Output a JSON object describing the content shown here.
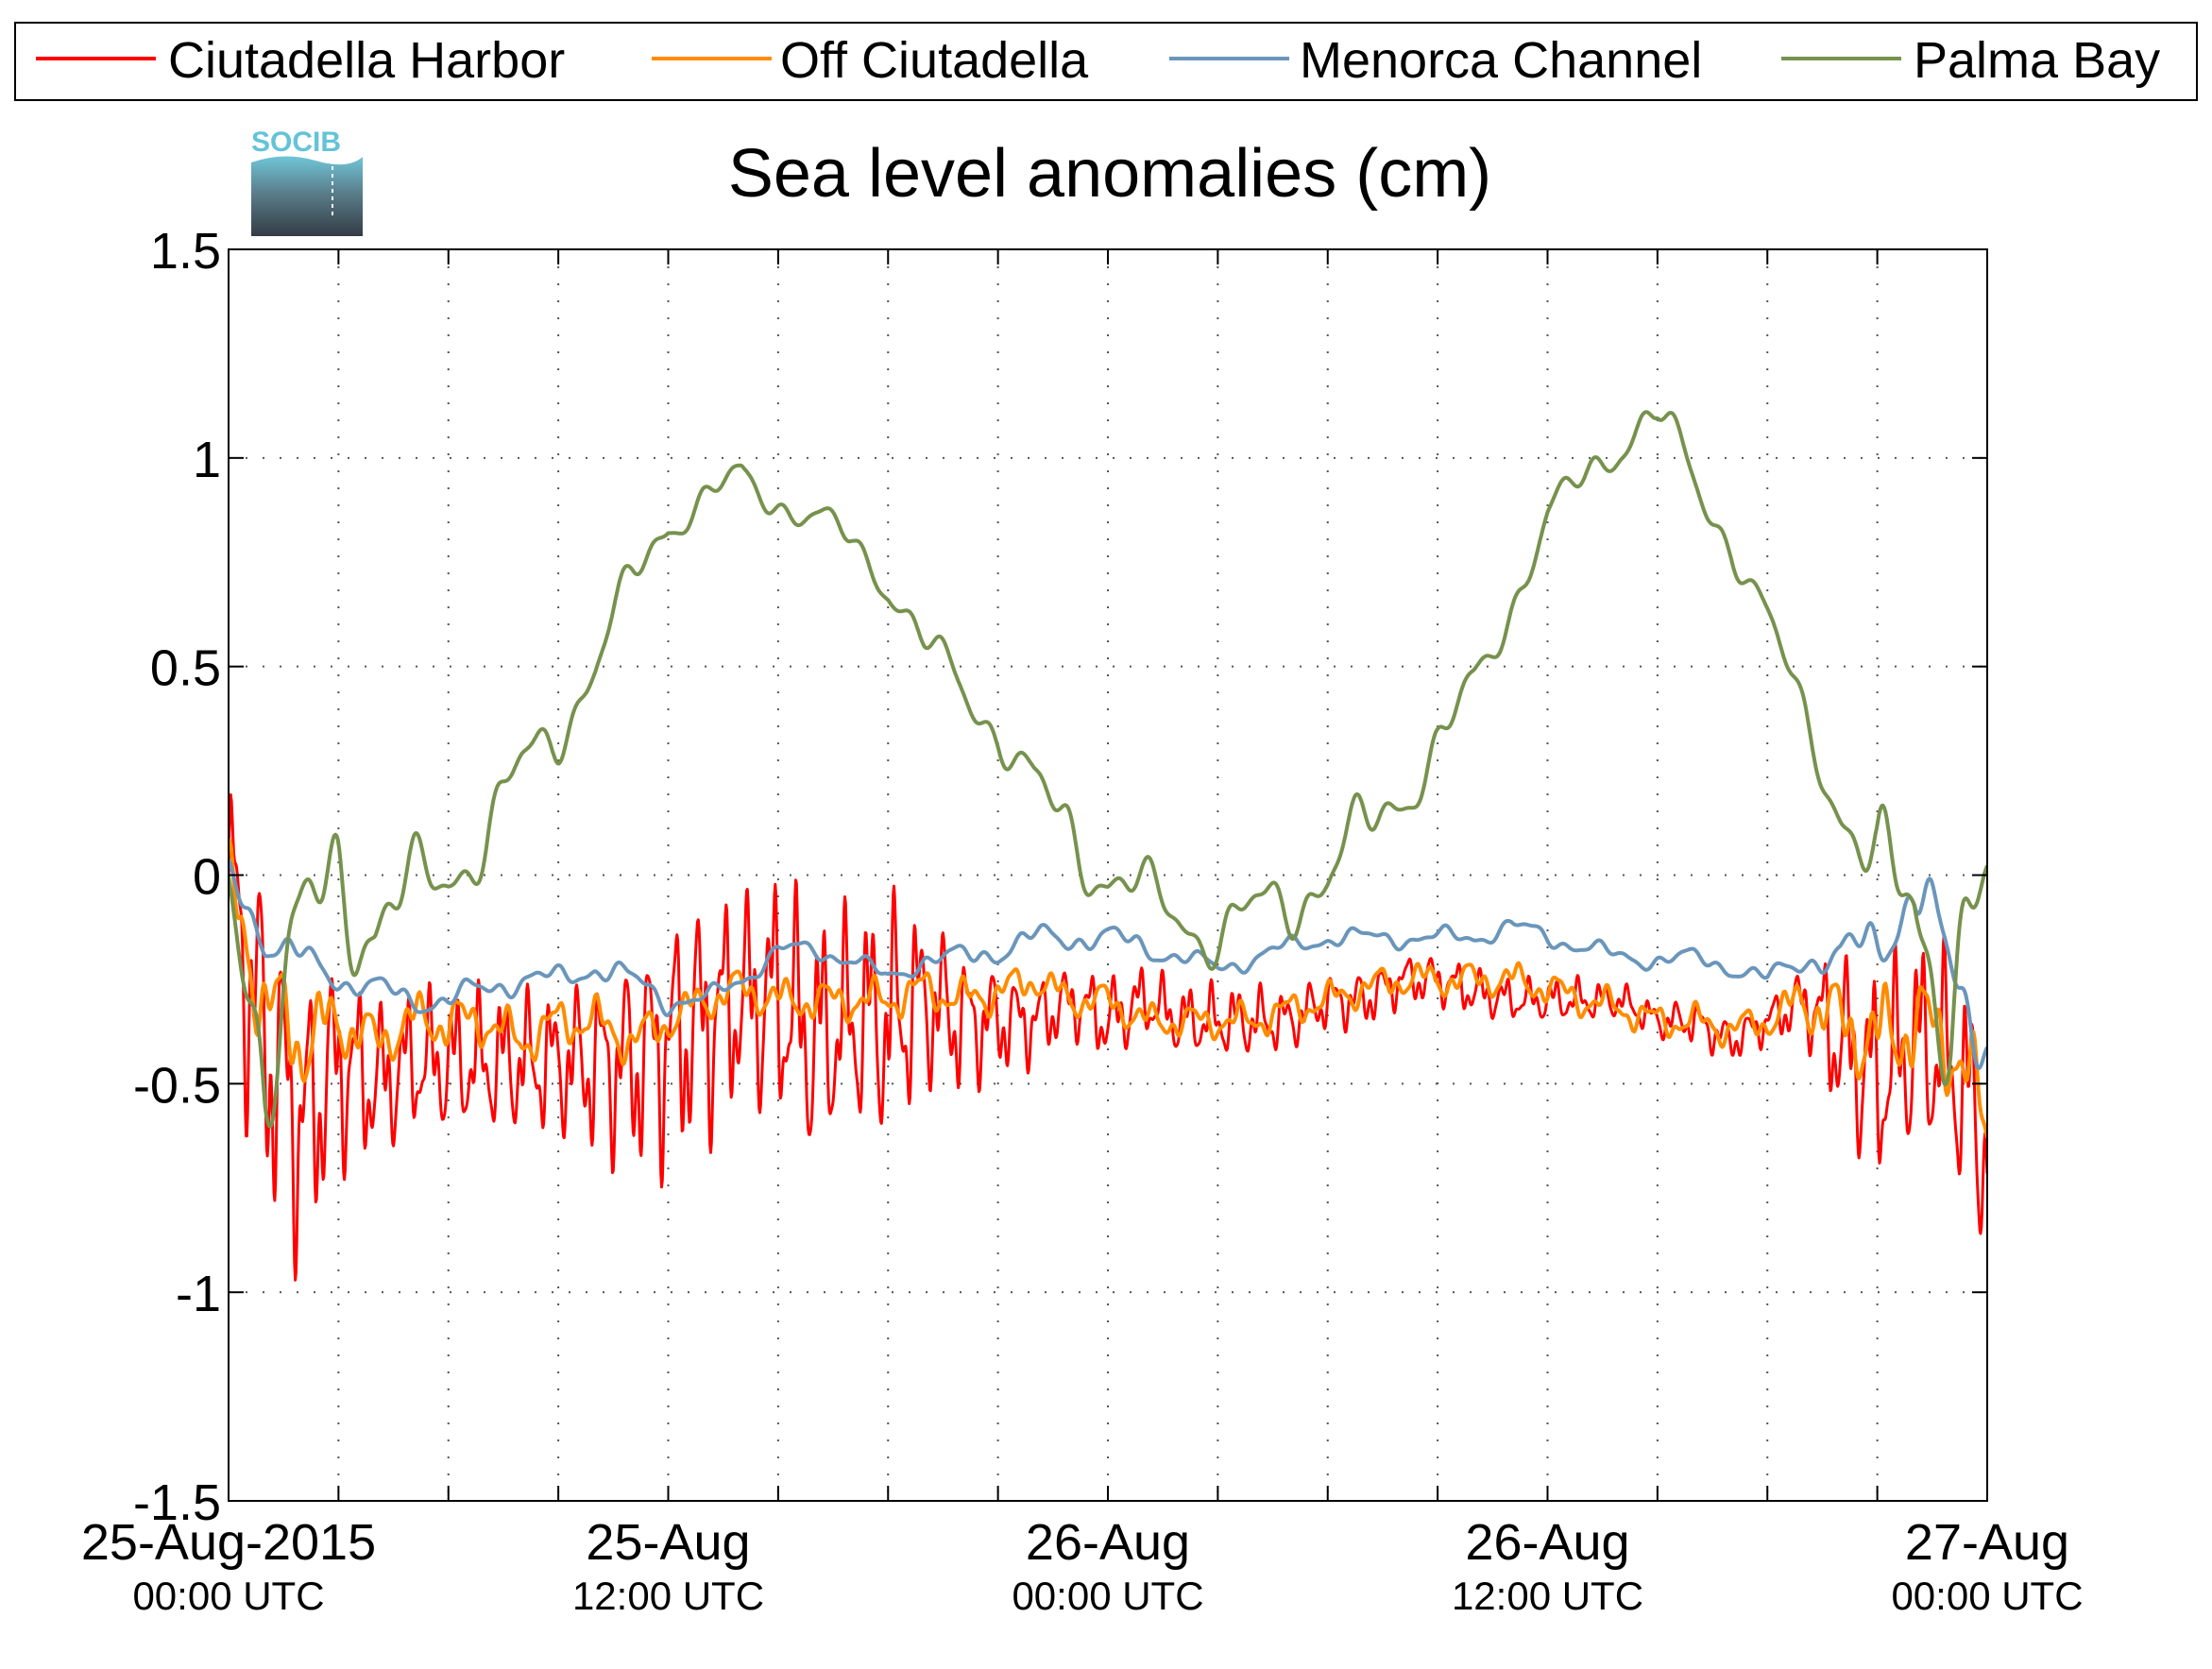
{
  "chart_data": {
    "type": "line",
    "title": "Sea level anomalies (cm)",
    "xlabel": "",
    "ylabel": "",
    "ylim": [
      -1.5,
      1.5
    ],
    "yticks": [
      "1.5",
      "1",
      "0.5",
      "0",
      "-0.5",
      "-1",
      "-1.5"
    ],
    "xlim_hours": [
      0,
      48
    ],
    "x_tick_labels": [
      {
        "hour": 0,
        "date": "25-Aug-2015",
        "time": "00:00 UTC"
      },
      {
        "hour": 12,
        "date": "25-Aug",
        "time": "12:00 UTC"
      },
      {
        "hour": 24,
        "date": "26-Aug",
        "time": "00:00 UTC"
      },
      {
        "hour": 36,
        "date": "26-Aug",
        "time": "12:00 UTC"
      },
      {
        "hour": 48,
        "date": "27-Aug",
        "time": "00:00 UTC"
      }
    ],
    "grid": true,
    "legend_position": "top",
    "logo": "SOCIB",
    "series": [
      {
        "name": "Ciutadella Harbor",
        "color": "#ff0000",
        "points": [
          [
            0,
            -0.05
          ],
          [
            1,
            -0.4
          ],
          [
            2,
            -0.6
          ],
          [
            3,
            -0.45
          ],
          [
            4,
            -0.5
          ],
          [
            5,
            -0.45
          ],
          [
            6,
            -0.45
          ],
          [
            7,
            -0.45
          ],
          [
            8,
            -0.45
          ],
          [
            9,
            -0.45
          ],
          [
            10,
            -0.45
          ],
          [
            11,
            -0.45
          ],
          [
            12,
            -0.4
          ],
          [
            13,
            -0.35
          ],
          [
            14,
            -0.3
          ],
          [
            15,
            -0.3
          ],
          [
            16,
            -0.4
          ],
          [
            17,
            -0.35
          ],
          [
            18,
            -0.35
          ],
          [
            19,
            -0.3
          ],
          [
            20,
            -0.35
          ],
          [
            21,
            -0.35
          ],
          [
            22,
            -0.35
          ],
          [
            23,
            -0.3
          ],
          [
            24,
            -0.35
          ],
          [
            25,
            -0.3
          ],
          [
            26,
            -0.35
          ],
          [
            27,
            -0.35
          ],
          [
            28,
            -0.35
          ],
          [
            29,
            -0.35
          ],
          [
            30,
            -0.3
          ],
          [
            31,
            -0.3
          ],
          [
            32,
            -0.25
          ],
          [
            33,
            -0.25
          ],
          [
            34,
            -0.28
          ],
          [
            35,
            -0.3
          ],
          [
            36,
            -0.3
          ],
          [
            37,
            -0.3
          ],
          [
            38,
            -0.3
          ],
          [
            39,
            -0.35
          ],
          [
            40,
            -0.35
          ],
          [
            41,
            -0.4
          ],
          [
            42,
            -0.35
          ],
          [
            43,
            -0.3
          ],
          [
            44,
            -0.4
          ],
          [
            45,
            -0.5
          ],
          [
            46,
            -0.4
          ],
          [
            47,
            -0.45
          ],
          [
            48,
            -0.65
          ]
        ],
        "amplitude": [
          0.4,
          0.45,
          0.4,
          0.3,
          0.22,
          0.2,
          0.2,
          0.2,
          0.2,
          0.2,
          0.25,
          0.3,
          0.35,
          0.35,
          0.3,
          0.35,
          0.35,
          0.3,
          0.35,
          0.25,
          0.2,
          0.15,
          0.12,
          0.1,
          0.12,
          0.1,
          0.1,
          0.1,
          0.1,
          0.08,
          0.08,
          0.08,
          0.07,
          0.07,
          0.07,
          0.06,
          0.06,
          0.06,
          0.05,
          0.05,
          0.06,
          0.06,
          0.06,
          0.1,
          0.25,
          0.3,
          0.3,
          0.3,
          0.35
        ]
      },
      {
        "name": "Off Ciutadella",
        "color": "#ff8c00",
        "points": [
          [
            0,
            -0.05
          ],
          [
            1,
            -0.3
          ],
          [
            2,
            -0.4
          ],
          [
            3,
            -0.35
          ],
          [
            4,
            -0.4
          ],
          [
            5,
            -0.35
          ],
          [
            6,
            -0.35
          ],
          [
            7,
            -0.35
          ],
          [
            8,
            -0.4
          ],
          [
            9,
            -0.35
          ],
          [
            10,
            -0.35
          ],
          [
            11,
            -0.4
          ],
          [
            12,
            -0.35
          ],
          [
            13,
            -0.3
          ],
          [
            14,
            -0.27
          ],
          [
            15,
            -0.3
          ],
          [
            16,
            -0.3
          ],
          [
            17,
            -0.3
          ],
          [
            18,
            -0.3
          ],
          [
            19,
            -0.27
          ],
          [
            20,
            -0.3
          ],
          [
            21,
            -0.28
          ],
          [
            22,
            -0.25
          ],
          [
            23,
            -0.3
          ],
          [
            24,
            -0.3
          ],
          [
            25,
            -0.35
          ],
          [
            26,
            -0.35
          ],
          [
            27,
            -0.35
          ],
          [
            28,
            -0.35
          ],
          [
            29,
            -0.32
          ],
          [
            30,
            -0.3
          ],
          [
            31,
            -0.27
          ],
          [
            32,
            -0.25
          ],
          [
            33,
            -0.25
          ],
          [
            34,
            -0.25
          ],
          [
            35,
            -0.25
          ],
          [
            36,
            -0.27
          ],
          [
            37,
            -0.3
          ],
          [
            38,
            -0.32
          ],
          [
            39,
            -0.35
          ],
          [
            40,
            -0.35
          ],
          [
            41,
            -0.37
          ],
          [
            42,
            -0.35
          ],
          [
            43,
            -0.3
          ],
          [
            44,
            -0.35
          ],
          [
            45,
            -0.4
          ],
          [
            46,
            -0.35
          ],
          [
            47,
            -0.4
          ],
          [
            48,
            -0.6
          ]
        ],
        "amplitude": [
          0.15,
          0.15,
          0.15,
          0.1,
          0.08,
          0.08,
          0.08,
          0.07,
          0.07,
          0.07,
          0.07,
          0.07,
          0.06,
          0.06,
          0.06,
          0.06,
          0.06,
          0.06,
          0.06,
          0.06,
          0.06,
          0.06,
          0.05,
          0.05,
          0.05,
          0.05,
          0.05,
          0.05,
          0.05,
          0.05,
          0.05,
          0.05,
          0.05,
          0.05,
          0.05,
          0.05,
          0.05,
          0.05,
          0.05,
          0.05,
          0.05,
          0.05,
          0.05,
          0.08,
          0.12,
          0.15,
          0.15,
          0.15,
          0.15
        ]
      },
      {
        "name": "Menorca Channel",
        "color": "#6a96bb",
        "points": [
          [
            0,
            0.0
          ],
          [
            1,
            -0.15
          ],
          [
            2,
            -0.2
          ],
          [
            3,
            -0.25
          ],
          [
            4,
            -0.27
          ],
          [
            5,
            -0.3
          ],
          [
            6,
            -0.3
          ],
          [
            7,
            -0.27
          ],
          [
            8,
            -0.25
          ],
          [
            9,
            -0.25
          ],
          [
            10,
            -0.22
          ],
          [
            11,
            -0.25
          ],
          [
            12,
            -0.3
          ],
          [
            13,
            -0.3
          ],
          [
            14,
            -0.25
          ],
          [
            15,
            -0.18
          ],
          [
            16,
            -0.18
          ],
          [
            17,
            -0.2
          ],
          [
            18,
            -0.25
          ],
          [
            19,
            -0.2
          ],
          [
            20,
            -0.2
          ],
          [
            21,
            -0.18
          ],
          [
            22,
            -0.15
          ],
          [
            23,
            -0.15
          ],
          [
            24,
            -0.15
          ],
          [
            25,
            -0.17
          ],
          [
            26,
            -0.2
          ],
          [
            27,
            -0.22
          ],
          [
            28,
            -0.2
          ],
          [
            29,
            -0.17
          ],
          [
            30,
            -0.15
          ],
          [
            31,
            -0.15
          ],
          [
            32,
            -0.15
          ],
          [
            33,
            -0.15
          ],
          [
            34,
            -0.15
          ],
          [
            35,
            -0.12
          ],
          [
            36,
            -0.15
          ],
          [
            37,
            -0.17
          ],
          [
            38,
            -0.2
          ],
          [
            39,
            -0.2
          ],
          [
            40,
            -0.2
          ],
          [
            41,
            -0.22
          ],
          [
            42,
            -0.25
          ],
          [
            43,
            -0.2
          ],
          [
            44,
            -0.2
          ],
          [
            45,
            -0.15
          ],
          [
            46,
            -0.05
          ],
          [
            47,
            -0.2
          ],
          [
            48,
            -0.4
          ]
        ],
        "amplitude": [
          0.05,
          0.06,
          0.05,
          0.04,
          0.04,
          0.04,
          0.04,
          0.04,
          0.04,
          0.04,
          0.04,
          0.04,
          0.04,
          0.03,
          0.03,
          0.03,
          0.03,
          0.03,
          0.03,
          0.03,
          0.04,
          0.04,
          0.04,
          0.04,
          0.04,
          0.04,
          0.03,
          0.03,
          0.03,
          0.03,
          0.03,
          0.03,
          0.03,
          0.03,
          0.03,
          0.03,
          0.03,
          0.03,
          0.03,
          0.03,
          0.03,
          0.03,
          0.03,
          0.04,
          0.06,
          0.1,
          0.12,
          0.12,
          0.12
        ]
      },
      {
        "name": "Palma Bay",
        "color": "#76924d",
        "points": [
          [
            0,
            0.0
          ],
          [
            1,
            -0.4
          ],
          [
            2,
            -0.2
          ],
          [
            3,
            0.0
          ],
          [
            4,
            -0.1
          ],
          [
            5,
            -0.05
          ],
          [
            6,
            0.0
          ],
          [
            7,
            0.1
          ],
          [
            8,
            0.25
          ],
          [
            9,
            0.35
          ],
          [
            10,
            0.5
          ],
          [
            11,
            0.7
          ],
          [
            12,
            0.85
          ],
          [
            13,
            0.9
          ],
          [
            14,
            0.95
          ],
          [
            15,
            0.9
          ],
          [
            16,
            0.85
          ],
          [
            17,
            0.8
          ],
          [
            18,
            0.7
          ],
          [
            19,
            0.55
          ],
          [
            20,
            0.45
          ],
          [
            21,
            0.35
          ],
          [
            22,
            0.2
          ],
          [
            23,
            0.1
          ],
          [
            24,
            0.0
          ],
          [
            25,
            -0.05
          ],
          [
            26,
            -0.1
          ],
          [
            27,
            -0.15
          ],
          [
            28,
            -0.1
          ],
          [
            29,
            -0.05
          ],
          [
            30,
            0.0
          ],
          [
            31,
            0.1
          ],
          [
            32,
            0.2
          ],
          [
            33,
            0.3
          ],
          [
            34,
            0.45
          ],
          [
            35,
            0.65
          ],
          [
            36,
            0.85
          ],
          [
            37,
            0.95
          ],
          [
            38,
            1.05
          ],
          [
            39,
            1.1
          ],
          [
            40,
            0.95
          ],
          [
            41,
            0.8
          ],
          [
            42,
            0.6
          ],
          [
            43,
            0.4
          ],
          [
            44,
            0.15
          ],
          [
            45,
            -0.05
          ],
          [
            46,
            0.0
          ],
          [
            47,
            -0.3
          ],
          [
            48,
            -0.1
          ]
        ],
        "amplitude": [
          0.1,
          0.3,
          0.3,
          0.25,
          0.2,
          0.15,
          0.12,
          0.12,
          0.1,
          0.1,
          0.08,
          0.08,
          0.07,
          0.06,
          0.06,
          0.06,
          0.06,
          0.06,
          0.06,
          0.07,
          0.08,
          0.08,
          0.1,
          0.12,
          0.12,
          0.1,
          0.1,
          0.1,
          0.12,
          0.12,
          0.12,
          0.12,
          0.1,
          0.1,
          0.08,
          0.07,
          0.07,
          0.07,
          0.08,
          0.08,
          0.08,
          0.07,
          0.07,
          0.07,
          0.1,
          0.2,
          0.3,
          0.3,
          0.3
        ]
      }
    ]
  }
}
